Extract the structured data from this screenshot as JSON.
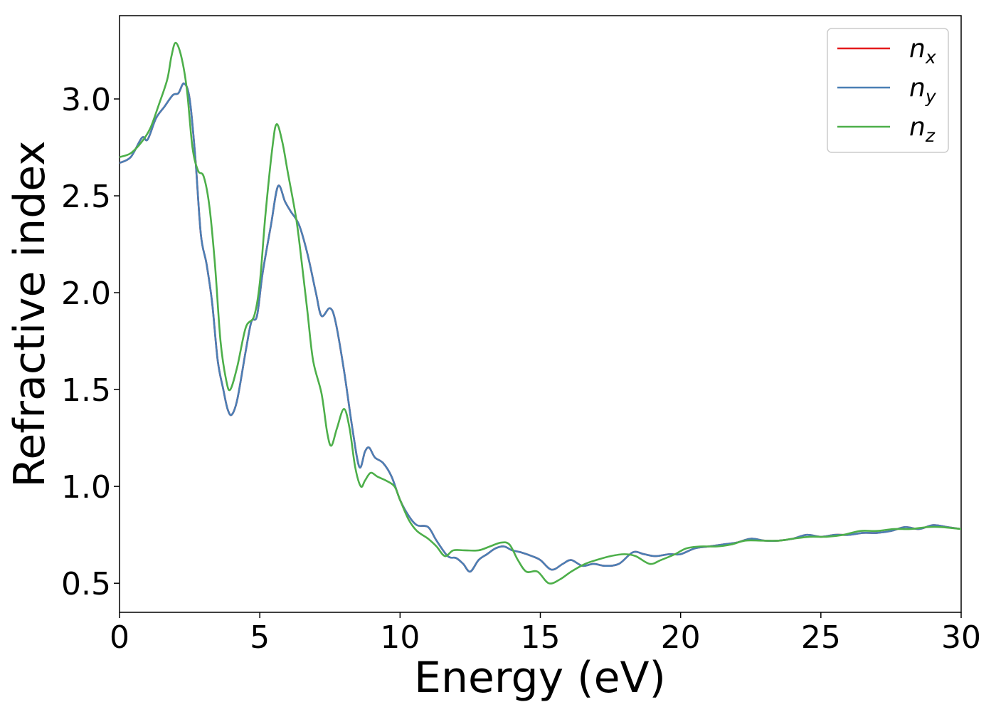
{
  "chart_data": {
    "type": "line",
    "xlabel": "Energy (eV)",
    "ylabel": "Refractive index",
    "xlim": [
      0,
      30
    ],
    "ylim": [
      0.35,
      3.43
    ],
    "xticks": [
      0,
      5,
      10,
      15,
      20,
      25,
      30
    ],
    "xtick_labels": [
      "0",
      "5",
      "10",
      "15",
      "20",
      "25",
      "30"
    ],
    "yticks": [
      0.5,
      1.0,
      1.5,
      2.0,
      2.5,
      3.0
    ],
    "ytick_labels": [
      "0.5",
      "1.0",
      "1.5",
      "2.0",
      "2.5",
      "3.0"
    ],
    "grid": false,
    "legend_position": "top-right",
    "series": [
      {
        "name": "n_x",
        "label_base": "n",
        "label_sub": "x",
        "color": "#e41a1c",
        "points": [
          [
            0,
            2.67
          ],
          [
            0.4,
            2.7
          ],
          [
            0.8,
            2.8
          ],
          [
            1.0,
            2.79
          ],
          [
            1.3,
            2.9
          ],
          [
            1.6,
            2.96
          ],
          [
            1.9,
            3.02
          ],
          [
            2.1,
            3.03
          ],
          [
            2.3,
            3.08
          ],
          [
            2.5,
            3.0
          ],
          [
            2.7,
            2.7
          ],
          [
            2.9,
            2.3
          ],
          [
            3.1,
            2.15
          ],
          [
            3.3,
            1.95
          ],
          [
            3.5,
            1.65
          ],
          [
            3.7,
            1.5
          ],
          [
            3.85,
            1.4
          ],
          [
            4.0,
            1.37
          ],
          [
            4.2,
            1.45
          ],
          [
            4.5,
            1.7
          ],
          [
            4.7,
            1.85
          ],
          [
            4.9,
            1.88
          ],
          [
            5.1,
            2.1
          ],
          [
            5.4,
            2.35
          ],
          [
            5.65,
            2.55
          ],
          [
            5.9,
            2.47
          ],
          [
            6.1,
            2.42
          ],
          [
            6.4,
            2.35
          ],
          [
            6.7,
            2.2
          ],
          [
            7.0,
            2.0
          ],
          [
            7.2,
            1.88
          ],
          [
            7.5,
            1.92
          ],
          [
            7.7,
            1.85
          ],
          [
            8.0,
            1.6
          ],
          [
            8.3,
            1.3
          ],
          [
            8.55,
            1.1
          ],
          [
            8.75,
            1.18
          ],
          [
            8.9,
            1.2
          ],
          [
            9.1,
            1.15
          ],
          [
            9.4,
            1.12
          ],
          [
            9.7,
            1.05
          ],
          [
            10.0,
            0.93
          ],
          [
            10.3,
            0.85
          ],
          [
            10.6,
            0.8
          ],
          [
            11.0,
            0.79
          ],
          [
            11.3,
            0.72
          ],
          [
            11.7,
            0.64
          ],
          [
            12.0,
            0.63
          ],
          [
            12.25,
            0.6
          ],
          [
            12.5,
            0.56
          ],
          [
            12.8,
            0.62
          ],
          [
            13.1,
            0.65
          ],
          [
            13.4,
            0.68
          ],
          [
            13.7,
            0.69
          ],
          [
            14.0,
            0.67
          ],
          [
            14.3,
            0.66
          ],
          [
            14.7,
            0.64
          ],
          [
            15.0,
            0.62
          ],
          [
            15.4,
            0.57
          ],
          [
            15.8,
            0.6
          ],
          [
            16.1,
            0.62
          ],
          [
            16.5,
            0.59
          ],
          [
            16.9,
            0.6
          ],
          [
            17.3,
            0.59
          ],
          [
            17.8,
            0.6
          ],
          [
            18.3,
            0.66
          ],
          [
            18.7,
            0.65
          ],
          [
            19.1,
            0.64
          ],
          [
            19.6,
            0.65
          ],
          [
            20.0,
            0.65
          ],
          [
            20.5,
            0.68
          ],
          [
            21.0,
            0.69
          ],
          [
            21.5,
            0.7
          ],
          [
            22.0,
            0.71
          ],
          [
            22.5,
            0.73
          ],
          [
            23.0,
            0.72
          ],
          [
            23.5,
            0.72
          ],
          [
            24.0,
            0.73
          ],
          [
            24.5,
            0.75
          ],
          [
            25.0,
            0.74
          ],
          [
            25.5,
            0.75
          ],
          [
            26.0,
            0.75
          ],
          [
            26.5,
            0.76
          ],
          [
            27.0,
            0.76
          ],
          [
            27.5,
            0.77
          ],
          [
            28.0,
            0.79
          ],
          [
            28.5,
            0.78
          ],
          [
            29.0,
            0.8
          ],
          [
            29.5,
            0.79
          ],
          [
            30.0,
            0.78
          ]
        ]
      },
      {
        "name": "n_y",
        "label_base": "n",
        "label_sub": "y",
        "color": "#4a7fb5",
        "points": [
          [
            0,
            2.67
          ],
          [
            0.4,
            2.7
          ],
          [
            0.8,
            2.8
          ],
          [
            1.0,
            2.79
          ],
          [
            1.3,
            2.9
          ],
          [
            1.6,
            2.96
          ],
          [
            1.9,
            3.02
          ],
          [
            2.1,
            3.03
          ],
          [
            2.3,
            3.08
          ],
          [
            2.5,
            3.0
          ],
          [
            2.7,
            2.7
          ],
          [
            2.9,
            2.3
          ],
          [
            3.1,
            2.15
          ],
          [
            3.3,
            1.95
          ],
          [
            3.5,
            1.65
          ],
          [
            3.7,
            1.5
          ],
          [
            3.85,
            1.4
          ],
          [
            4.0,
            1.37
          ],
          [
            4.2,
            1.45
          ],
          [
            4.5,
            1.7
          ],
          [
            4.7,
            1.85
          ],
          [
            4.9,
            1.88
          ],
          [
            5.1,
            2.1
          ],
          [
            5.4,
            2.35
          ],
          [
            5.65,
            2.55
          ],
          [
            5.9,
            2.47
          ],
          [
            6.1,
            2.42
          ],
          [
            6.4,
            2.35
          ],
          [
            6.7,
            2.2
          ],
          [
            7.0,
            2.0
          ],
          [
            7.2,
            1.88
          ],
          [
            7.5,
            1.92
          ],
          [
            7.7,
            1.85
          ],
          [
            8.0,
            1.6
          ],
          [
            8.3,
            1.3
          ],
          [
            8.55,
            1.1
          ],
          [
            8.75,
            1.18
          ],
          [
            8.9,
            1.2
          ],
          [
            9.1,
            1.15
          ],
          [
            9.4,
            1.12
          ],
          [
            9.7,
            1.05
          ],
          [
            10.0,
            0.93
          ],
          [
            10.3,
            0.85
          ],
          [
            10.6,
            0.8
          ],
          [
            11.0,
            0.79
          ],
          [
            11.3,
            0.72
          ],
          [
            11.7,
            0.64
          ],
          [
            12.0,
            0.63
          ],
          [
            12.25,
            0.6
          ],
          [
            12.5,
            0.56
          ],
          [
            12.8,
            0.62
          ],
          [
            13.1,
            0.65
          ],
          [
            13.4,
            0.68
          ],
          [
            13.7,
            0.69
          ],
          [
            14.0,
            0.67
          ],
          [
            14.3,
            0.66
          ],
          [
            14.7,
            0.64
          ],
          [
            15.0,
            0.62
          ],
          [
            15.4,
            0.57
          ],
          [
            15.8,
            0.6
          ],
          [
            16.1,
            0.62
          ],
          [
            16.5,
            0.59
          ],
          [
            16.9,
            0.6
          ],
          [
            17.3,
            0.59
          ],
          [
            17.8,
            0.6
          ],
          [
            18.3,
            0.66
          ],
          [
            18.7,
            0.65
          ],
          [
            19.1,
            0.64
          ],
          [
            19.6,
            0.65
          ],
          [
            20.0,
            0.65
          ],
          [
            20.5,
            0.68
          ],
          [
            21.0,
            0.69
          ],
          [
            21.5,
            0.7
          ],
          [
            22.0,
            0.71
          ],
          [
            22.5,
            0.73
          ],
          [
            23.0,
            0.72
          ],
          [
            23.5,
            0.72
          ],
          [
            24.0,
            0.73
          ],
          [
            24.5,
            0.75
          ],
          [
            25.0,
            0.74
          ],
          [
            25.5,
            0.75
          ],
          [
            26.0,
            0.75
          ],
          [
            26.5,
            0.76
          ],
          [
            27.0,
            0.76
          ],
          [
            27.5,
            0.77
          ],
          [
            28.0,
            0.79
          ],
          [
            28.5,
            0.78
          ],
          [
            29.0,
            0.8
          ],
          [
            29.5,
            0.79
          ],
          [
            30.0,
            0.78
          ]
        ]
      },
      {
        "name": "n_z",
        "label_base": "n",
        "label_sub": "z",
        "color": "#4daf4a",
        "points": [
          [
            0,
            2.7
          ],
          [
            0.4,
            2.72
          ],
          [
            0.8,
            2.78
          ],
          [
            1.1,
            2.85
          ],
          [
            1.4,
            2.97
          ],
          [
            1.7,
            3.1
          ],
          [
            1.85,
            3.22
          ],
          [
            2.0,
            3.29
          ],
          [
            2.2,
            3.22
          ],
          [
            2.4,
            3.05
          ],
          [
            2.6,
            2.75
          ],
          [
            2.8,
            2.63
          ],
          [
            3.0,
            2.6
          ],
          [
            3.2,
            2.45
          ],
          [
            3.4,
            2.15
          ],
          [
            3.6,
            1.75
          ],
          [
            3.8,
            1.55
          ],
          [
            3.95,
            1.5
          ],
          [
            4.2,
            1.62
          ],
          [
            4.5,
            1.82
          ],
          [
            4.8,
            1.88
          ],
          [
            5.0,
            2.05
          ],
          [
            5.2,
            2.4
          ],
          [
            5.45,
            2.75
          ],
          [
            5.6,
            2.87
          ],
          [
            5.8,
            2.78
          ],
          [
            6.0,
            2.62
          ],
          [
            6.3,
            2.38
          ],
          [
            6.5,
            2.15
          ],
          [
            6.7,
            1.9
          ],
          [
            6.9,
            1.65
          ],
          [
            7.2,
            1.48
          ],
          [
            7.4,
            1.28
          ],
          [
            7.55,
            1.21
          ],
          [
            7.75,
            1.3
          ],
          [
            8.0,
            1.4
          ],
          [
            8.2,
            1.3
          ],
          [
            8.4,
            1.1
          ],
          [
            8.6,
            1.0
          ],
          [
            8.75,
            1.03
          ],
          [
            8.95,
            1.07
          ],
          [
            9.2,
            1.05
          ],
          [
            9.5,
            1.03
          ],
          [
            9.8,
            1.0
          ],
          [
            10.0,
            0.93
          ],
          [
            10.3,
            0.83
          ],
          [
            10.6,
            0.77
          ],
          [
            11.0,
            0.73
          ],
          [
            11.3,
            0.69
          ],
          [
            11.6,
            0.64
          ],
          [
            11.9,
            0.67
          ],
          [
            12.3,
            0.67
          ],
          [
            12.8,
            0.67
          ],
          [
            13.2,
            0.69
          ],
          [
            13.6,
            0.71
          ],
          [
            13.9,
            0.7
          ],
          [
            14.2,
            0.62
          ],
          [
            14.5,
            0.56
          ],
          [
            14.9,
            0.56
          ],
          [
            15.3,
            0.5
          ],
          [
            15.7,
            0.52
          ],
          [
            16.1,
            0.56
          ],
          [
            16.6,
            0.6
          ],
          [
            17.0,
            0.62
          ],
          [
            17.5,
            0.64
          ],
          [
            18.0,
            0.65
          ],
          [
            18.4,
            0.64
          ],
          [
            18.9,
            0.6
          ],
          [
            19.3,
            0.62
          ],
          [
            19.8,
            0.65
          ],
          [
            20.2,
            0.68
          ],
          [
            20.7,
            0.69
          ],
          [
            21.3,
            0.69
          ],
          [
            21.8,
            0.7
          ],
          [
            22.3,
            0.72
          ],
          [
            22.9,
            0.72
          ],
          [
            23.5,
            0.72
          ],
          [
            24.0,
            0.73
          ],
          [
            24.6,
            0.74
          ],
          [
            25.2,
            0.74
          ],
          [
            25.8,
            0.75
          ],
          [
            26.4,
            0.77
          ],
          [
            27.0,
            0.77
          ],
          [
            27.6,
            0.78
          ],
          [
            28.2,
            0.78
          ],
          [
            28.8,
            0.79
          ],
          [
            29.3,
            0.79
          ],
          [
            30.0,
            0.78
          ]
        ]
      }
    ]
  }
}
